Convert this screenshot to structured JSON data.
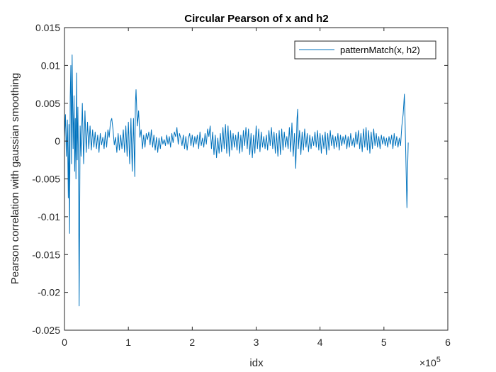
{
  "chart_data": {
    "type": "line",
    "title": "Circular Pearson of x and h2",
    "xlabel": "idx",
    "ylabel": "Pearson correlation with gaussian smoothing",
    "xlim": [
      0,
      600000
    ],
    "ylim": [
      -0.025,
      0.015
    ],
    "x_ticks": [
      0,
      100000,
      200000,
      300000,
      400000,
      500000,
      600000
    ],
    "x_tick_labels": [
      "0",
      "1",
      "2",
      "3",
      "4",
      "5",
      "6"
    ],
    "x_exponent": {
      "base": "×10",
      "power": "5"
    },
    "y_ticks": [
      -0.025,
      -0.02,
      -0.015,
      -0.01,
      -0.005,
      0,
      0.005,
      0.01,
      0.015
    ],
    "y_tick_labels": [
      "-0.025",
      "-0.02",
      "-0.015",
      "-0.01",
      "-0.005",
      "0",
      "0.005",
      "0.01",
      "0.015"
    ],
    "grid": false,
    "legend_position": "top-right",
    "series": [
      {
        "name": "patternMatch(x, h2)",
        "color": "#0072BD",
        "points": [
          [
            0,
            0.0005
          ],
          [
            1500,
            0.0035
          ],
          [
            3000,
            -0.002
          ],
          [
            4500,
            0.0028
          ],
          [
            6000,
            -0.0075
          ],
          [
            7000,
            0.0022
          ],
          [
            8000,
            -0.0122
          ],
          [
            9000,
            0.0058
          ],
          [
            10000,
            0.01
          ],
          [
            11000,
            -0.003
          ],
          [
            12000,
            0.0114
          ],
          [
            13500,
            -0.001
          ],
          [
            15000,
            0.006
          ],
          [
            16000,
            -0.004
          ],
          [
            17000,
            0.003
          ],
          [
            18000,
            -0.005
          ],
          [
            19000,
            0.009
          ],
          [
            20000,
            -0.0025
          ],
          [
            21000,
            0.0045
          ],
          [
            22000,
            -0.003
          ],
          [
            23000,
            -0.0218
          ],
          [
            24500,
            0.002
          ],
          [
            26000,
            -0.002
          ],
          [
            28000,
            0.005
          ],
          [
            30000,
            -0.003
          ],
          [
            32000,
            0.004
          ],
          [
            34000,
            -0.0015
          ],
          [
            36000,
            0.0025
          ],
          [
            38000,
            -0.001
          ],
          [
            40000,
            0.002
          ],
          [
            42000,
            -0.0012
          ],
          [
            44000,
            0.0015
          ],
          [
            46000,
            -0.0008
          ],
          [
            48000,
            0.0012
          ],
          [
            50000,
            -0.001
          ],
          [
            52000,
            0.0008
          ],
          [
            54000,
            -0.0015
          ],
          [
            56000,
            0.001
          ],
          [
            58000,
            -0.0005
          ],
          [
            60000,
            0.0005
          ],
          [
            62000,
            -0.001
          ],
          [
            64000,
            0.0012
          ],
          [
            66000,
            -0.0008
          ],
          [
            68000,
            0.0015
          ],
          [
            70000,
            0.0005
          ],
          [
            72000,
            0.0025
          ],
          [
            74000,
            0.003
          ],
          [
            76000,
            0.0015
          ],
          [
            78000,
            -0.0005
          ],
          [
            80000,
            0.0005
          ],
          [
            82000,
            -0.0015
          ],
          [
            84000,
            0.001
          ],
          [
            86000,
            -0.0012
          ],
          [
            88000,
            0.0008
          ],
          [
            90000,
            -0.001
          ],
          [
            92000,
            0.0015
          ],
          [
            94000,
            -0.0015
          ],
          [
            96000,
            0.002
          ],
          [
            98000,
            -0.002
          ],
          [
            100000,
            0.0025
          ],
          [
            102000,
            -0.003
          ],
          [
            104000,
            0.003
          ],
          [
            106000,
            -0.004
          ],
          [
            108000,
            0.003
          ],
          [
            110000,
            -0.0047
          ],
          [
            111000,
            0.005
          ],
          [
            112000,
            0.0068
          ],
          [
            114000,
            0.002
          ],
          [
            116000,
            0.004
          ],
          [
            118000,
            0.0005
          ],
          [
            120000,
            0.0015
          ],
          [
            122000,
            -0.001
          ],
          [
            124000,
            0.0008
          ],
          [
            126000,
            -0.0008
          ],
          [
            128000,
            0.001
          ],
          [
            130000,
            0.0002
          ],
          [
            132000,
            0.0012
          ],
          [
            134000,
            -0.0005
          ],
          [
            136000,
            0.0015
          ],
          [
            138000,
            -0.0008
          ],
          [
            140000,
            0.0008
          ],
          [
            142000,
            -0.0012
          ],
          [
            144000,
            0.0005
          ],
          [
            146000,
            -0.0015
          ],
          [
            148000,
            0.0004
          ],
          [
            150000,
            -0.001
          ],
          [
            152000,
            0.0006
          ],
          [
            154000,
            -0.0004
          ],
          [
            156000,
            0.0002
          ],
          [
            158000,
            -0.0006
          ],
          [
            160000,
            0.0008
          ],
          [
            162000,
            -0.0004
          ],
          [
            164000,
            0.0006
          ],
          [
            166000,
            -0.0008
          ],
          [
            168000,
            0.001
          ],
          [
            170000,
            -0.0002
          ],
          [
            172000,
            0.0012
          ],
          [
            174000,
            0.0006
          ],
          [
            176000,
            0.0018
          ],
          [
            178000,
            -0.0004
          ],
          [
            180000,
            0.001
          ],
          [
            182000,
            0.0004
          ],
          [
            184000,
            -0.0006
          ],
          [
            186000,
            0.0008
          ],
          [
            188000,
            -0.001
          ],
          [
            190000,
            0.0006
          ],
          [
            192000,
            -0.0012
          ],
          [
            194000,
            0.0004
          ],
          [
            196000,
            0.001
          ],
          [
            198000,
            -0.0006
          ],
          [
            200000,
            0.0008
          ],
          [
            202000,
            -0.0008
          ],
          [
            204000,
            0.0006
          ],
          [
            206000,
            -0.0004
          ],
          [
            208000,
            0.0008
          ],
          [
            210000,
            -0.001
          ],
          [
            212000,
            0.0012
          ],
          [
            214000,
            -0.0006
          ],
          [
            216000,
            0.0004
          ],
          [
            218000,
            -0.0008
          ],
          [
            220000,
            0.001
          ],
          [
            222000,
            -0.0004
          ],
          [
            224000,
            0.0016
          ],
          [
            226000,
            0.0006
          ],
          [
            228000,
            0.002
          ],
          [
            230000,
            -0.001
          ],
          [
            232000,
            0.0012
          ],
          [
            234000,
            -0.0018
          ],
          [
            236000,
            0.0008
          ],
          [
            238000,
            -0.0022
          ],
          [
            240000,
            0.0004
          ],
          [
            242000,
            -0.0016
          ],
          [
            244000,
            0.001
          ],
          [
            246000,
            -0.0014
          ],
          [
            248000,
            0.0018
          ],
          [
            250000,
            -0.001
          ],
          [
            252000,
            0.0022
          ],
          [
            254000,
            -0.0016
          ],
          [
            256000,
            0.002
          ],
          [
            258000,
            -0.002
          ],
          [
            260000,
            0.0014
          ],
          [
            262000,
            -0.0012
          ],
          [
            264000,
            0.001
          ],
          [
            266000,
            -0.0008
          ],
          [
            268000,
            0.0008
          ],
          [
            270000,
            -0.0012
          ],
          [
            272000,
            0.0012
          ],
          [
            274000,
            -0.0016
          ],
          [
            276000,
            0.0008
          ],
          [
            278000,
            -0.0014
          ],
          [
            280000,
            0.0014
          ],
          [
            282000,
            -0.0006
          ],
          [
            284000,
            0.0018
          ],
          [
            286000,
            -0.001
          ],
          [
            288000,
            0.0016
          ],
          [
            290000,
            -0.0018
          ],
          [
            292000,
            0.001
          ],
          [
            294000,
            -0.0022
          ],
          [
            296000,
            0.0008
          ],
          [
            298000,
            -0.0016
          ],
          [
            300000,
            0.002
          ],
          [
            302000,
            -0.001
          ],
          [
            304000,
            0.0016
          ],
          [
            306000,
            -0.0014
          ],
          [
            308000,
            0.0012
          ],
          [
            310000,
            -0.0008
          ],
          [
            312000,
            0.0006
          ],
          [
            314000,
            -0.001
          ],
          [
            316000,
            0.0008
          ],
          [
            318000,
            -0.0012
          ],
          [
            320000,
            0.0014
          ],
          [
            322000,
            -0.0006
          ],
          [
            324000,
            0.0018
          ],
          [
            326000,
            -0.001
          ],
          [
            328000,
            0.0012
          ],
          [
            330000,
            -0.0016
          ],
          [
            332000,
            0.001
          ],
          [
            334000,
            -0.002
          ],
          [
            336000,
            0.0014
          ],
          [
            338000,
            -0.0018
          ],
          [
            340000,
            0.0016
          ],
          [
            342000,
            -0.0012
          ],
          [
            344000,
            0.0012
          ],
          [
            346000,
            -0.0008
          ],
          [
            348000,
            0.0006
          ],
          [
            350000,
            -0.001
          ],
          [
            352000,
            0.0018
          ],
          [
            354000,
            -0.0014
          ],
          [
            356000,
            0.0024
          ],
          [
            358000,
            -0.002
          ],
          [
            360000,
            0.001
          ],
          [
            362000,
            -0.0036
          ],
          [
            364000,
            0.003
          ],
          [
            365000,
            0.0042
          ],
          [
            366000,
            -0.001
          ],
          [
            368000,
            0.0014
          ],
          [
            370000,
            -0.0018
          ],
          [
            372000,
            0.0012
          ],
          [
            374000,
            -0.0012
          ],
          [
            376000,
            0.0016
          ],
          [
            378000,
            -0.0008
          ],
          [
            380000,
            0.001
          ],
          [
            382000,
            -0.0014
          ],
          [
            384000,
            0.0008
          ],
          [
            386000,
            -0.001
          ],
          [
            388000,
            0.0006
          ],
          [
            390000,
            -0.0006
          ],
          [
            392000,
            0.0012
          ],
          [
            394000,
            -0.0008
          ],
          [
            396000,
            0.0014
          ],
          [
            398000,
            -0.0012
          ],
          [
            400000,
            0.001
          ],
          [
            402000,
            -0.0016
          ],
          [
            404000,
            0.0008
          ],
          [
            406000,
            -0.001
          ],
          [
            408000,
            0.0012
          ],
          [
            410000,
            -0.0018
          ],
          [
            412000,
            0.001
          ],
          [
            414000,
            -0.0012
          ],
          [
            416000,
            0.0014
          ],
          [
            418000,
            -0.0006
          ],
          [
            420000,
            0.0008
          ],
          [
            422000,
            -0.001
          ],
          [
            424000,
            0.0006
          ],
          [
            426000,
            -0.0008
          ],
          [
            428000,
            0.001
          ],
          [
            430000,
            -0.0012
          ],
          [
            432000,
            0.0008
          ],
          [
            434000,
            -0.0006
          ],
          [
            436000,
            0.0006
          ],
          [
            438000,
            -0.0004
          ],
          [
            440000,
            0.0008
          ],
          [
            442000,
            -0.001
          ],
          [
            444000,
            0.0006
          ],
          [
            446000,
            -0.0008
          ],
          [
            448000,
            0.001
          ],
          [
            450000,
            -0.0006
          ],
          [
            452000,
            0.0004
          ],
          [
            454000,
            -0.0008
          ],
          [
            456000,
            0.0012
          ],
          [
            458000,
            -0.0004
          ],
          [
            460000,
            0.0014
          ],
          [
            462000,
            -0.001
          ],
          [
            464000,
            0.001
          ],
          [
            466000,
            -0.0014
          ],
          [
            468000,
            0.0016
          ],
          [
            470000,
            -0.0008
          ],
          [
            472000,
            0.0018
          ],
          [
            474000,
            -0.0012
          ],
          [
            476000,
            0.0014
          ],
          [
            478000,
            -0.0016
          ],
          [
            480000,
            0.0012
          ],
          [
            482000,
            -0.001
          ],
          [
            484000,
            0.0016
          ],
          [
            486000,
            -0.0006
          ],
          [
            488000,
            0.001
          ],
          [
            490000,
            -0.0008
          ],
          [
            492000,
            0.0006
          ],
          [
            494000,
            -0.001
          ],
          [
            496000,
            0.0008
          ],
          [
            498000,
            -0.0004
          ],
          [
            500000,
            0.0006
          ],
          [
            502000,
            -0.0006
          ],
          [
            504000,
            0.0004
          ],
          [
            506000,
            -0.0008
          ],
          [
            508000,
            0.0006
          ],
          [
            510000,
            -0.0004
          ],
          [
            512000,
            0.0008
          ],
          [
            514000,
            -0.001
          ],
          [
            516000,
            0.001
          ],
          [
            518000,
            -0.0006
          ],
          [
            520000,
            0.0006
          ],
          [
            522000,
            -0.0008
          ],
          [
            524000,
            0.0004
          ],
          [
            526000,
            -0.0006
          ],
          [
            528000,
            0.002
          ],
          [
            530000,
            0.0035
          ],
          [
            531000,
            0.0048
          ],
          [
            532000,
            0.0062
          ],
          [
            533000,
            0.003
          ],
          [
            534000,
            -0.001
          ],
          [
            535000,
            -0.005
          ],
          [
            536000,
            -0.0088
          ],
          [
            537000,
            -0.004
          ],
          [
            538000,
            -0.0002
          ]
        ]
      }
    ]
  }
}
